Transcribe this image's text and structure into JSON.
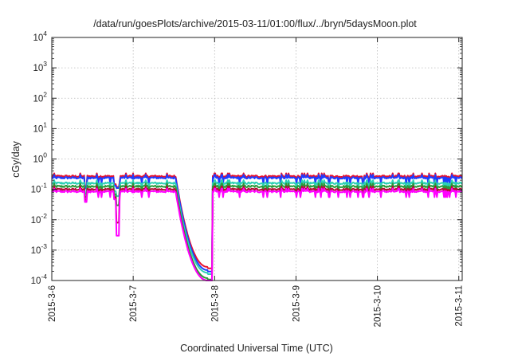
{
  "chart_data": {
    "type": "line",
    "title": "/data/run/goesPlots/archive/2015-03-11/01:00/flux/../bryn/5daysMoon.plot",
    "xlabel": "Coordinated Universal Time (UTC)",
    "ylabel": "cGy/day",
    "y_scale": "log",
    "ylim": [
      0.0001,
      10000
    ],
    "xlim": [
      "2015-03-06",
      "2015-03-11 01:00"
    ],
    "grid": true,
    "legend": "none",
    "x_tick_labels": [
      "2015-3-6",
      "2015-3-7",
      "2015-3-8",
      "2015-3-9",
      "2015-3-10",
      "2015-3-11"
    ],
    "y_tick_labels": [
      {
        "base": "10",
        "exp": "-4"
      },
      {
        "base": "10",
        "exp": "-3"
      },
      {
        "base": "10",
        "exp": "-2"
      },
      {
        "base": "10",
        "exp": "-1"
      },
      {
        "base": "10",
        "exp": "0"
      },
      {
        "base": "10",
        "exp": "1"
      },
      {
        "base": "10",
        "exp": "2"
      },
      {
        "base": "10",
        "exp": "3"
      },
      {
        "base": "10",
        "exp": "4"
      }
    ],
    "series": [
      {
        "color": "#e8112d",
        "level": 0.27,
        "low_dip": 0.12,
        "decay_end": 0.00028
      },
      {
        "color": "#1e3cff",
        "level": 0.24,
        "low_dip": 0.11,
        "decay_end": 0.00022
      },
      {
        "color": "#2bd1b4",
        "level": 0.16,
        "low_dip": 0.06,
        "decay_end": 0.00018
      },
      {
        "color": "#2a9a3a",
        "level": 0.125,
        "low_dip": 0.03,
        "decay_end": 0.00012
      },
      {
        "color": "#b01030",
        "level": 0.1,
        "low_dip": 0.008,
        "decay_end": 0.0001
      },
      {
        "color": "#ff00ff",
        "level": 0.085,
        "low_dip": 0.003,
        "decay_end": 0.0001
      }
    ]
  }
}
